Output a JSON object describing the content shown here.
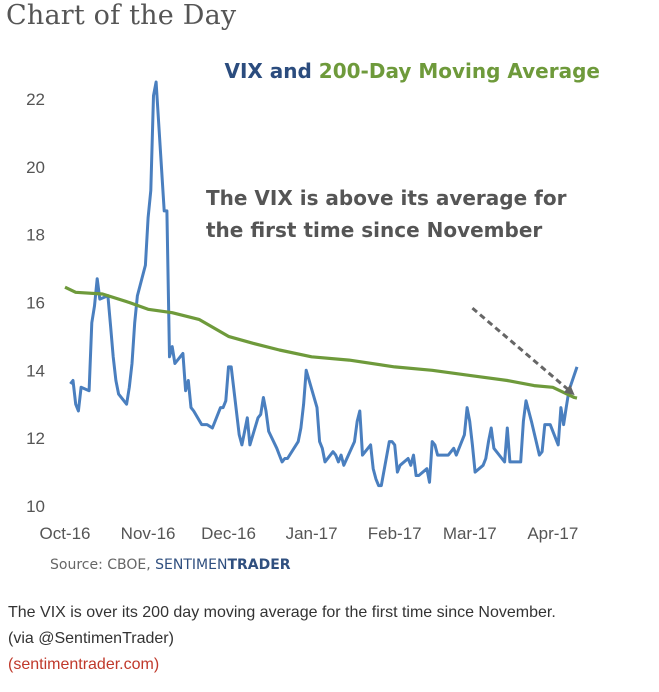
{
  "header": {
    "title": "Chart of the Day"
  },
  "chart_data": {
    "type": "line",
    "title_part1": "VIX and ",
    "title_part2": "200-Day Moving Average",
    "title_colors": {
      "vix": "#2b4c7e",
      "ma": "#6e9a3b"
    },
    "xlabel": "",
    "ylabel": "",
    "ylim": [
      10,
      22.5
    ],
    "yticks": [
      10,
      12,
      14,
      16,
      18,
      20,
      22
    ],
    "x_tick_labels": [
      "Oct-16",
      "Nov-16",
      "Dec-16",
      "Jan-17",
      "Feb-17",
      "Mar-17",
      "Apr-17"
    ],
    "x_tick_dates": [
      "2016-10-01",
      "2016-11-01",
      "2016-12-01",
      "2017-01-01",
      "2017-02-01",
      "2017-03-01",
      "2017-04-01"
    ],
    "x_range": [
      "2016-10-01",
      "2017-04-13"
    ],
    "grid": false,
    "series": [
      {
        "color": "#4a7fbf",
        "points": [
          [
            "2016-10-03",
            13.6
          ],
          [
            "2016-10-04",
            13.7
          ],
          [
            "2016-10-05",
            13.0
          ],
          [
            "2016-10-06",
            12.8
          ],
          [
            "2016-10-07",
            13.5
          ],
          [
            "2016-10-10",
            13.4
          ],
          [
            "2016-10-11",
            15.4
          ],
          [
            "2016-10-12",
            15.9
          ],
          [
            "2016-10-13",
            16.7
          ],
          [
            "2016-10-14",
            16.1
          ],
          [
            "2016-10-17",
            16.2
          ],
          [
            "2016-10-18",
            15.3
          ],
          [
            "2016-10-19",
            14.4
          ],
          [
            "2016-10-20",
            13.7
          ],
          [
            "2016-10-21",
            13.3
          ],
          [
            "2016-10-24",
            13.0
          ],
          [
            "2016-10-25",
            13.5
          ],
          [
            "2016-10-26",
            14.2
          ],
          [
            "2016-10-27",
            15.4
          ],
          [
            "2016-10-28",
            16.2
          ],
          [
            "2016-10-31",
            17.1
          ],
          [
            "2016-11-01",
            18.5
          ],
          [
            "2016-11-02",
            19.3
          ],
          [
            "2016-11-03",
            22.1
          ],
          [
            "2016-11-04",
            22.5
          ],
          [
            "2016-11-07",
            18.7
          ],
          [
            "2016-11-08",
            18.7
          ],
          [
            "2016-11-09",
            14.4
          ],
          [
            "2016-11-10",
            14.7
          ],
          [
            "2016-11-11",
            14.2
          ],
          [
            "2016-11-14",
            14.5
          ],
          [
            "2016-11-15",
            13.4
          ],
          [
            "2016-11-16",
            13.7
          ],
          [
            "2016-11-17",
            12.9
          ],
          [
            "2016-11-18",
            12.8
          ],
          [
            "2016-11-21",
            12.4
          ],
          [
            "2016-11-22",
            12.4
          ],
          [
            "2016-11-23",
            12.4
          ],
          [
            "2016-11-25",
            12.3
          ],
          [
            "2016-11-28",
            12.9
          ],
          [
            "2016-11-29",
            12.9
          ],
          [
            "2016-11-30",
            13.1
          ],
          [
            "2016-12-01",
            14.1
          ],
          [
            "2016-12-02",
            14.1
          ],
          [
            "2016-12-05",
            12.1
          ],
          [
            "2016-12-06",
            11.8
          ],
          [
            "2016-12-07",
            12.2
          ],
          [
            "2016-12-08",
            12.6
          ],
          [
            "2016-12-09",
            11.8
          ],
          [
            "2016-12-12",
            12.6
          ],
          [
            "2016-12-13",
            12.7
          ],
          [
            "2016-12-14",
            13.2
          ],
          [
            "2016-12-15",
            12.8
          ],
          [
            "2016-12-16",
            12.2
          ],
          [
            "2016-12-19",
            11.7
          ],
          [
            "2016-12-20",
            11.5
          ],
          [
            "2016-12-21",
            11.3
          ],
          [
            "2016-12-22",
            11.4
          ],
          [
            "2016-12-23",
            11.4
          ],
          [
            "2016-12-27",
            11.9
          ],
          [
            "2016-12-28",
            12.3
          ],
          [
            "2016-12-29",
            13.0
          ],
          [
            "2016-12-30",
            14.0
          ],
          [
            "2017-01-03",
            12.9
          ],
          [
            "2017-01-04",
            11.9
          ],
          [
            "2017-01-05",
            11.7
          ],
          [
            "2017-01-06",
            11.3
          ],
          [
            "2017-01-09",
            11.6
          ],
          [
            "2017-01-10",
            11.5
          ],
          [
            "2017-01-11",
            11.3
          ],
          [
            "2017-01-12",
            11.5
          ],
          [
            "2017-01-13",
            11.2
          ],
          [
            "2017-01-17",
            11.9
          ],
          [
            "2017-01-18",
            12.5
          ],
          [
            "2017-01-19",
            12.8
          ],
          [
            "2017-01-20",
            11.5
          ],
          [
            "2017-01-23",
            11.8
          ],
          [
            "2017-01-24",
            11.1
          ],
          [
            "2017-01-25",
            10.8
          ],
          [
            "2017-01-26",
            10.6
          ],
          [
            "2017-01-27",
            10.6
          ],
          [
            "2017-01-30",
            11.9
          ],
          [
            "2017-01-31",
            11.9
          ],
          [
            "2017-02-01",
            11.8
          ],
          [
            "2017-02-02",
            11.0
          ],
          [
            "2017-02-03",
            11.2
          ],
          [
            "2017-02-06",
            11.4
          ],
          [
            "2017-02-07",
            11.2
          ],
          [
            "2017-02-08",
            11.5
          ],
          [
            "2017-02-09",
            10.9
          ],
          [
            "2017-02-10",
            10.9
          ],
          [
            "2017-02-13",
            11.1
          ],
          [
            "2017-02-14",
            10.7
          ],
          [
            "2017-02-15",
            11.9
          ],
          [
            "2017-02-16",
            11.8
          ],
          [
            "2017-02-17",
            11.5
          ],
          [
            "2017-02-21",
            11.5
          ],
          [
            "2017-02-22",
            11.6
          ],
          [
            "2017-02-23",
            11.7
          ],
          [
            "2017-02-24",
            11.5
          ],
          [
            "2017-02-27",
            12.1
          ],
          [
            "2017-02-28",
            12.9
          ],
          [
            "2017-03-01",
            12.5
          ],
          [
            "2017-03-02",
            11.8
          ],
          [
            "2017-03-03",
            11.0
          ],
          [
            "2017-03-06",
            11.2
          ],
          [
            "2017-03-07",
            11.4
          ],
          [
            "2017-03-08",
            11.9
          ],
          [
            "2017-03-09",
            12.3
          ],
          [
            "2017-03-10",
            11.7
          ],
          [
            "2017-03-13",
            11.4
          ],
          [
            "2017-03-14",
            11.3
          ],
          [
            "2017-03-15",
            12.3
          ],
          [
            "2017-03-16",
            11.3
          ],
          [
            "2017-03-17",
            11.3
          ],
          [
            "2017-03-20",
            11.3
          ],
          [
            "2017-03-21",
            12.5
          ],
          [
            "2017-03-22",
            13.1
          ],
          [
            "2017-03-23",
            12.8
          ],
          [
            "2017-03-24",
            12.5
          ],
          [
            "2017-03-27",
            11.5
          ],
          [
            "2017-03-28",
            11.6
          ],
          [
            "2017-03-29",
            12.4
          ],
          [
            "2017-03-30",
            12.4
          ],
          [
            "2017-03-31",
            12.4
          ],
          [
            "2017-04-03",
            11.8
          ],
          [
            "2017-04-04",
            12.9
          ],
          [
            "2017-04-05",
            12.4
          ],
          [
            "2017-04-06",
            12.9
          ],
          [
            "2017-04-07",
            13.4
          ],
          [
            "2017-04-10",
            14.1
          ]
        ]
      },
      {
        "color": "#6e9a3b",
        "points": [
          [
            "2016-10-01",
            16.45
          ],
          [
            "2016-10-05",
            16.3
          ],
          [
            "2016-10-15",
            16.25
          ],
          [
            "2016-10-25",
            16.0
          ],
          [
            "2016-11-01",
            15.8
          ],
          [
            "2016-11-10",
            15.7
          ],
          [
            "2016-11-20",
            15.5
          ],
          [
            "2016-12-01",
            15.0
          ],
          [
            "2016-12-10",
            14.8
          ],
          [
            "2016-12-20",
            14.6
          ],
          [
            "2017-01-01",
            14.4
          ],
          [
            "2017-01-15",
            14.3
          ],
          [
            "2017-02-01",
            14.1
          ],
          [
            "2017-02-15",
            14.0
          ],
          [
            "2017-03-01",
            13.85
          ],
          [
            "2017-03-15",
            13.7
          ],
          [
            "2017-03-25",
            13.55
          ],
          [
            "2017-04-01",
            13.5
          ],
          [
            "2017-04-05",
            13.35
          ],
          [
            "2017-04-09",
            13.2
          ],
          [
            "2017-04-10",
            13.18
          ]
        ]
      }
    ],
    "annotation": {
      "lines": [
        "The VIX is above its average for",
        "the first time since November"
      ],
      "arrow_from": [
        "2017-03-02",
        14.3
      ],
      "arrow_to": [
        "2017-04-08",
        13.7
      ]
    }
  },
  "source": {
    "prefix": "Source: CBOE, ",
    "brand_a": "SENTIMEN",
    "brand_b": "TRADER"
  },
  "caption": {
    "line1": "The VIX is over its 200 day moving average for the first time since November.",
    "line2": "(via @SentimenTrader)",
    "link": "(sentimentrader.com)"
  }
}
